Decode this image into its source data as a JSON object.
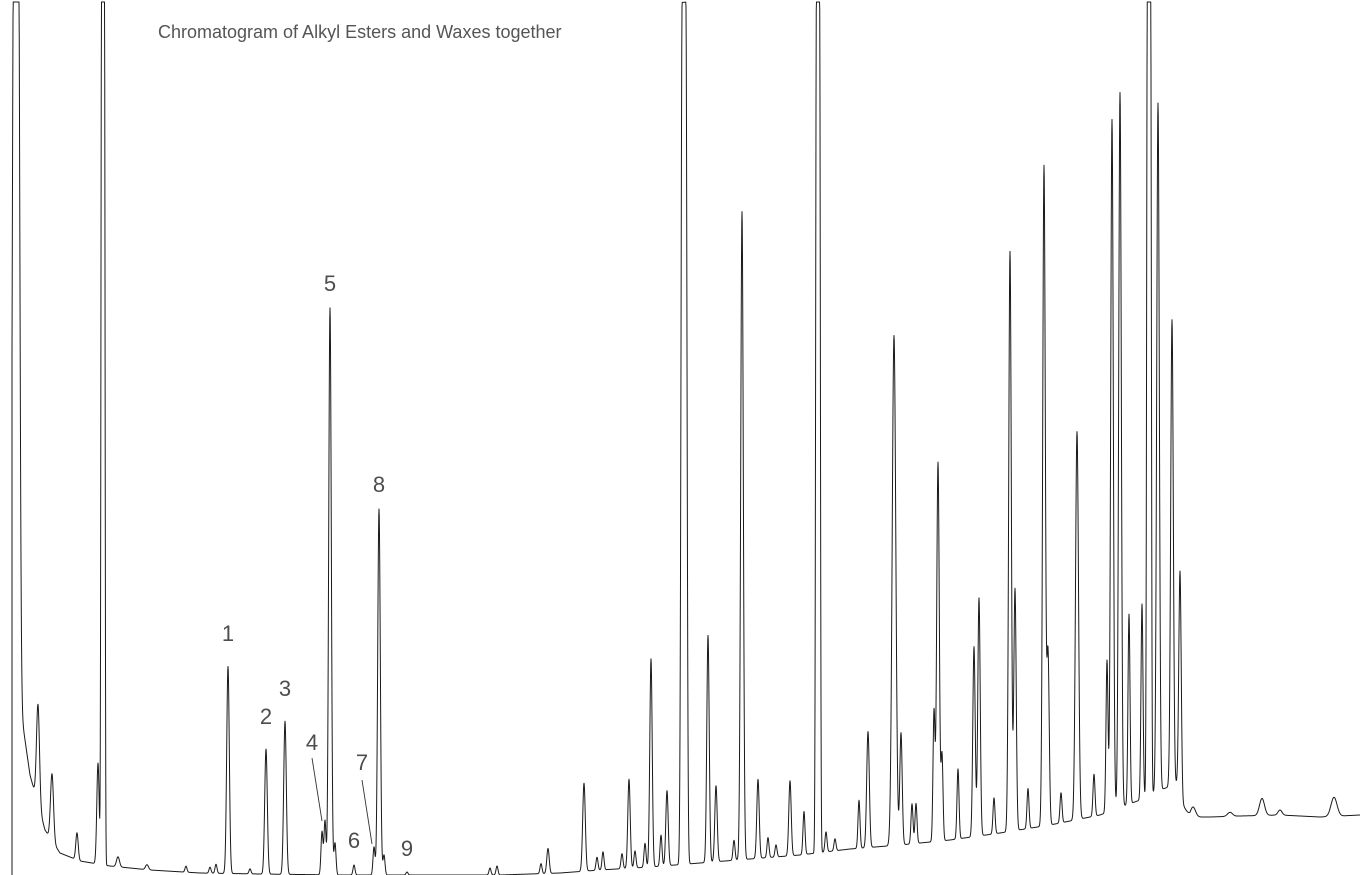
{
  "chart_data": {
    "type": "line",
    "title": "Chromatogram of Alkyl Esters and Waxes together",
    "xlabel": "",
    "ylabel": "",
    "axes_visible": false,
    "grid": false,
    "line_color": "#1a1a1a",
    "label_color": "#4d4d4d",
    "title_color": "#555555",
    "xlim": [
      0,
      1360
    ],
    "ylim": [
      0,
      875
    ],
    "peak_labels": [
      {
        "text": "1",
        "x": 228,
        "y": 218
      },
      {
        "text": "2",
        "x": 266,
        "y": 135
      },
      {
        "text": "3",
        "x": 285,
        "y": 163
      },
      {
        "text": "4",
        "x": 324,
        "y": 56
      },
      {
        "text": "5",
        "x": 330,
        "y": 568
      },
      {
        "text": "6",
        "x": 354,
        "y": 11
      },
      {
        "text": "7",
        "x": 374,
        "y": 28
      },
      {
        "text": "8",
        "x": 379,
        "y": 367
      },
      {
        "text": "9",
        "x": 407,
        "y": 3
      }
    ],
    "peaks": [
      {
        "x": 16,
        "y": 860,
        "w": 3,
        "flat": 1
      },
      {
        "x": 38,
        "y": 100,
        "w": 1.5
      },
      {
        "x": 52,
        "y": 67,
        "w": 1.5
      },
      {
        "x": 77,
        "y": 27,
        "w": 1.2
      },
      {
        "x": 98,
        "y": 101,
        "w": 1.2
      },
      {
        "x": 103,
        "y": 865,
        "w": 1.2,
        "flat": 1
      },
      {
        "x": 118,
        "y": 10,
        "w": 1.5
      },
      {
        "x": 147,
        "y": 5,
        "w": 1.5
      },
      {
        "x": 186,
        "y": 6,
        "w": 1
      },
      {
        "x": 210,
        "y": 6,
        "w": 1
      },
      {
        "x": 216,
        "y": 9,
        "w": 1
      },
      {
        "x": 228,
        "y": 207,
        "w": 1.3
      },
      {
        "x": 250,
        "y": 5,
        "w": 1
      },
      {
        "x": 266,
        "y": 125,
        "w": 1.3
      },
      {
        "x": 285,
        "y": 153,
        "w": 1.3
      },
      {
        "x": 322,
        "y": 43,
        "w": 1
      },
      {
        "x": 325,
        "y": 54,
        "w": 1
      },
      {
        "x": 330,
        "y": 567,
        "w": 1.3
      },
      {
        "x": 335,
        "y": 32,
        "w": 1
      },
      {
        "x": 354,
        "y": 10,
        "w": 1
      },
      {
        "x": 374,
        "y": 28,
        "w": 1
      },
      {
        "x": 379,
        "y": 366,
        "w": 1.3
      },
      {
        "x": 384,
        "y": 20,
        "w": 1
      },
      {
        "x": 407,
        "y": 3,
        "w": 1
      },
      {
        "x": 490,
        "y": 7,
        "w": 1
      },
      {
        "x": 497,
        "y": 9,
        "w": 1
      },
      {
        "x": 541,
        "y": 10,
        "w": 1
      },
      {
        "x": 548,
        "y": 25,
        "w": 1.2
      },
      {
        "x": 584,
        "y": 88,
        "w": 1.3
      },
      {
        "x": 597,
        "y": 13,
        "w": 1
      },
      {
        "x": 603,
        "y": 18,
        "w": 1
      },
      {
        "x": 622,
        "y": 15,
        "w": 1
      },
      {
        "x": 629,
        "y": 89,
        "w": 1.2
      },
      {
        "x": 635,
        "y": 17,
        "w": 1
      },
      {
        "x": 645,
        "y": 24,
        "w": 1
      },
      {
        "x": 651,
        "y": 208,
        "w": 1.2
      },
      {
        "x": 661,
        "y": 31,
        "w": 1
      },
      {
        "x": 667,
        "y": 75,
        "w": 1.2
      },
      {
        "x": 684,
        "y": 862,
        "w": 2.2,
        "flat": 1
      },
      {
        "x": 708,
        "y": 227,
        "w": 1.2
      },
      {
        "x": 716,
        "y": 76,
        "w": 1.2
      },
      {
        "x": 734,
        "y": 20,
        "w": 1
      },
      {
        "x": 742,
        "y": 648,
        "w": 1.3
      },
      {
        "x": 758,
        "y": 79,
        "w": 1.2
      },
      {
        "x": 768,
        "y": 20,
        "w": 1
      },
      {
        "x": 776,
        "y": 12,
        "w": 1
      },
      {
        "x": 790,
        "y": 75,
        "w": 1.2
      },
      {
        "x": 804,
        "y": 43,
        "w": 1
      },
      {
        "x": 818,
        "y": 860,
        "w": 1.5,
        "flat": 1
      },
      {
        "x": 826,
        "y": 20,
        "w": 1
      },
      {
        "x": 835,
        "y": 12,
        "w": 1
      },
      {
        "x": 859,
        "y": 48,
        "w": 1
      },
      {
        "x": 868,
        "y": 116,
        "w": 1.3
      },
      {
        "x": 894,
        "y": 510,
        "w": 1.8
      },
      {
        "x": 901,
        "y": 112,
        "w": 1.2
      },
      {
        "x": 912,
        "y": 40,
        "w": 1
      },
      {
        "x": 916,
        "y": 40,
        "w": 1
      },
      {
        "x": 934,
        "y": 130,
        "w": 1
      },
      {
        "x": 938,
        "y": 379,
        "w": 1.3
      },
      {
        "x": 942,
        "y": 86,
        "w": 1
      },
      {
        "x": 958,
        "y": 70,
        "w": 1
      },
      {
        "x": 974,
        "y": 190,
        "w": 1.2
      },
      {
        "x": 979,
        "y": 238,
        "w": 1.2
      },
      {
        "x": 994,
        "y": 36,
        "w": 1
      },
      {
        "x": 1010,
        "y": 580,
        "w": 1.3
      },
      {
        "x": 1015,
        "y": 242,
        "w": 1.2
      },
      {
        "x": 1028,
        "y": 40,
        "w": 1
      },
      {
        "x": 1044,
        "y": 660,
        "w": 1.3
      },
      {
        "x": 1048,
        "y": 173,
        "w": 1.2
      },
      {
        "x": 1061,
        "y": 30,
        "w": 1
      },
      {
        "x": 1077,
        "y": 388,
        "w": 1.5
      },
      {
        "x": 1094,
        "y": 42,
        "w": 1
      },
      {
        "x": 1107,
        "y": 152,
        "w": 1
      },
      {
        "x": 1112,
        "y": 691,
        "w": 1.3
      },
      {
        "x": 1120,
        "y": 715,
        "w": 1.3
      },
      {
        "x": 1129,
        "y": 190,
        "w": 1
      },
      {
        "x": 1142,
        "y": 195,
        "w": 1
      },
      {
        "x": 1149,
        "y": 834,
        "w": 1.5,
        "flat": 1
      },
      {
        "x": 1158,
        "y": 688,
        "w": 1.3
      },
      {
        "x": 1172,
        "y": 466,
        "w": 1.3
      },
      {
        "x": 1180,
        "y": 212,
        "w": 1.2
      },
      {
        "x": 1193,
        "y": 10,
        "w": 2.5
      },
      {
        "x": 1230,
        "y": 4,
        "w": 2.5
      },
      {
        "x": 1262,
        "y": 17,
        "w": 2.5
      },
      {
        "x": 1280,
        "y": 5,
        "w": 2
      },
      {
        "x": 1334,
        "y": 19,
        "w": 3
      }
    ],
    "baseline": [
      [
        0,
        0
      ],
      [
        20,
        170
      ],
      [
        30,
        100
      ],
      [
        45,
        45
      ],
      [
        60,
        22
      ],
      [
        80,
        14
      ],
      [
        110,
        9
      ],
      [
        150,
        5
      ],
      [
        200,
        2
      ],
      [
        260,
        1
      ],
      [
        340,
        0
      ],
      [
        420,
        0
      ],
      [
        500,
        0
      ],
      [
        560,
        2
      ],
      [
        600,
        5
      ],
      [
        650,
        8
      ],
      [
        700,
        12
      ],
      [
        750,
        16
      ],
      [
        800,
        20
      ],
      [
        850,
        26
      ],
      [
        900,
        30
      ],
      [
        950,
        35
      ],
      [
        1000,
        42
      ],
      [
        1050,
        50
      ],
      [
        1100,
        60
      ],
      [
        1140,
        75
      ],
      [
        1160,
        85
      ],
      [
        1180,
        92
      ],
      [
        1183,
        70
      ],
      [
        1190,
        58
      ],
      [
        1210,
        58
      ],
      [
        1240,
        59
      ],
      [
        1280,
        60
      ],
      [
        1320,
        58
      ],
      [
        1360,
        60
      ]
    ]
  }
}
